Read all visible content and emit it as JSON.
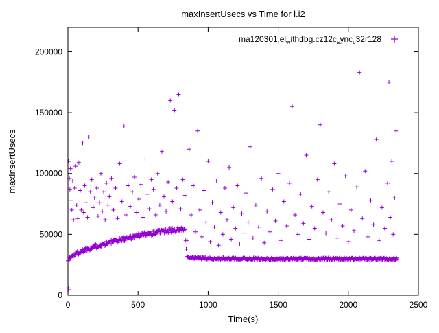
{
  "chart_data": {
    "type": "scatter",
    "title": "maxInsertUsecs vs Time for l.i2",
    "xlabel": "Time(s)",
    "ylabel": "maxInsertUsecs",
    "xlim": [
      0,
      2500
    ],
    "ylim": [
      0,
      220000
    ],
    "xticks": [
      0,
      500,
      1000,
      1500,
      2000,
      2500
    ],
    "yticks": [
      0,
      50000,
      100000,
      150000,
      200000
    ],
    "grid": false,
    "legend_position": "top-right-inside",
    "series": [
      {
        "name": "ma120301_rel_withdbg.cz12c_sync_c32r128",
        "name_segments": [
          {
            "t": "ma120301"
          },
          {
            "t": "r",
            "sub": true
          },
          {
            "t": "el"
          },
          {
            "t": "w",
            "sub": true
          },
          {
            "t": "ithdbg.cz12c"
          },
          {
            "t": "s",
            "sub": true
          },
          {
            "t": "ync"
          },
          {
            "t": "c",
            "sub": true
          },
          {
            "t": "32r128"
          }
        ],
        "marker": "plus",
        "color": "#9400D3",
        "band_profile": [
          [
            0,
            29500
          ],
          [
            40,
            33000
          ],
          [
            80,
            35500
          ],
          [
            120,
            37500
          ],
          [
            160,
            39000
          ],
          [
            200,
            40500
          ],
          [
            250,
            42000
          ],
          [
            300,
            43500
          ],
          [
            350,
            45000
          ],
          [
            400,
            46500
          ],
          [
            450,
            47800
          ],
          [
            500,
            49000
          ],
          [
            550,
            50200
          ],
          [
            600,
            51200
          ],
          [
            650,
            52200
          ],
          [
            700,
            53000
          ],
          [
            750,
            53600
          ],
          [
            800,
            54000
          ],
          [
            835,
            54200
          ],
          [
            848,
            31000
          ],
          [
            1000,
            30200
          ],
          [
            1500,
            29800
          ],
          [
            2000,
            29900
          ],
          [
            2350,
            29800
          ]
        ],
        "band_step": 4,
        "band_x_end": 2350,
        "band_drop_x": 840,
        "band_noise_rise": 2000,
        "band_noise_flat": 900,
        "outliers": [
          [
            3,
            6000
          ],
          [
            6,
            4500
          ],
          [
            5,
            110000
          ],
          [
            10,
            96000
          ],
          [
            14,
            87000
          ],
          [
            18,
            104000
          ],
          [
            22,
            78000
          ],
          [
            28,
            70000
          ],
          [
            34,
            94000
          ],
          [
            40,
            62000
          ],
          [
            48,
            88000
          ],
          [
            55,
            106000
          ],
          [
            62,
            74000
          ],
          [
            70,
            63000
          ],
          [
            78,
            109000
          ],
          [
            88,
            86000
          ],
          [
            95,
            70000
          ],
          [
            105,
            125000
          ],
          [
            112,
            68000
          ],
          [
            120,
            90000
          ],
          [
            130,
            76000
          ],
          [
            140,
            64000
          ],
          [
            150,
            130000
          ],
          [
            160,
            85000
          ],
          [
            170,
            95000
          ],
          [
            180,
            72000
          ],
          [
            190,
            80000
          ],
          [
            205,
            88000
          ],
          [
            215,
            65000
          ],
          [
            225,
            76000
          ],
          [
            235,
            100000
          ],
          [
            245,
            69000
          ],
          [
            255,
            85000
          ],
          [
            265,
            62000
          ],
          [
            275,
            92000
          ],
          [
            285,
            74000
          ],
          [
            295,
            81000
          ],
          [
            310,
            96000
          ],
          [
            325,
            70000
          ],
          [
            340,
            88000
          ],
          [
            355,
            63000
          ],
          [
            370,
            108000
          ],
          [
            385,
            77000
          ],
          [
            400,
            139000
          ],
          [
            415,
            66000
          ],
          [
            430,
            90000
          ],
          [
            445,
            73000
          ],
          [
            460,
            85000
          ],
          [
            475,
            97000
          ],
          [
            490,
            68000
          ],
          [
            505,
            79000
          ],
          [
            520,
            91000
          ],
          [
            535,
            64000
          ],
          [
            550,
            112000
          ],
          [
            565,
            83000
          ],
          [
            580,
            71000
          ],
          [
            595,
            95000
          ],
          [
            610,
            87000
          ],
          [
            625,
            66000
          ],
          [
            640,
            100000
          ],
          [
            655,
            74000
          ],
          [
            670,
            118000
          ],
          [
            685,
            81000
          ],
          [
            700,
            69000
          ],
          [
            715,
            93000
          ],
          [
            730,
            160000
          ],
          [
            745,
            77000
          ],
          [
            760,
            152000
          ],
          [
            775,
            88000
          ],
          [
            790,
            165000
          ],
          [
            805,
            71000
          ],
          [
            820,
            95000
          ],
          [
            835,
            82000
          ],
          [
            850,
            45000
          ],
          [
            865,
            120000
          ],
          [
            880,
            66000
          ],
          [
            895,
            90000
          ],
          [
            910,
            52000
          ],
          [
            925,
            135000
          ],
          [
            940,
            70000
          ],
          [
            955,
            48000
          ],
          [
            970,
            86000
          ],
          [
            985,
            60000
          ],
          [
            1000,
            110000
          ],
          [
            1015,
            44000
          ],
          [
            1030,
            76000
          ],
          [
            1045,
            56000
          ],
          [
            1060,
            94000
          ],
          [
            1075,
            41000
          ],
          [
            1090,
            68000
          ],
          [
            1105,
            50000
          ],
          [
            1120,
            88000
          ],
          [
            1135,
            62000
          ],
          [
            1150,
            105000
          ],
          [
            1165,
            46000
          ],
          [
            1180,
            72000
          ],
          [
            1195,
            55000
          ],
          [
            1210,
            90000
          ],
          [
            1225,
            42000
          ],
          [
            1240,
            67000
          ],
          [
            1255,
            51000
          ],
          [
            1270,
            84000
          ],
          [
            1285,
            60000
          ],
          [
            1300,
            122000
          ],
          [
            1320,
            47000
          ],
          [
            1340,
            74000
          ],
          [
            1360,
            56000
          ],
          [
            1380,
            96000
          ],
          [
            1400,
            43000
          ],
          [
            1420,
            69000
          ],
          [
            1440,
            52000
          ],
          [
            1460,
            87000
          ],
          [
            1480,
            61000
          ],
          [
            1500,
            100000
          ],
          [
            1520,
            45000
          ],
          [
            1540,
            77000
          ],
          [
            1560,
            57000
          ],
          [
            1580,
            92000
          ],
          [
            1600,
            155000
          ],
          [
            1620,
            66000
          ],
          [
            1640,
            50000
          ],
          [
            1660,
            83000
          ],
          [
            1680,
            59000
          ],
          [
            1700,
            115000
          ],
          [
            1720,
            46000
          ],
          [
            1740,
            73000
          ],
          [
            1760,
            55000
          ],
          [
            1780,
            95000
          ],
          [
            1800,
            140000
          ],
          [
            1820,
            68000
          ],
          [
            1840,
            51000
          ],
          [
            1860,
            85000
          ],
          [
            1880,
            62000
          ],
          [
            1900,
            108000
          ],
          [
            1920,
            47000
          ],
          [
            1940,
            75000
          ],
          [
            1960,
            57000
          ],
          [
            1980,
            98000
          ],
          [
            2000,
            44000
          ],
          [
            2020,
            70000
          ],
          [
            2040,
            53000
          ],
          [
            2060,
            89000
          ],
          [
            2080,
            183000
          ],
          [
            2100,
            63000
          ],
          [
            2120,
            102000
          ],
          [
            2140,
            48000
          ],
          [
            2160,
            78000
          ],
          [
            2180,
            58000
          ],
          [
            2200,
            128000
          ],
          [
            2220,
            45000
          ],
          [
            2240,
            72000
          ],
          [
            2260,
            55000
          ],
          [
            2280,
            92000
          ],
          [
            2290,
            175000
          ],
          [
            2300,
            64000
          ],
          [
            2310,
            110000
          ],
          [
            2320,
            50000
          ],
          [
            2330,
            80000
          ],
          [
            2340,
            135000
          ]
        ]
      }
    ]
  }
}
